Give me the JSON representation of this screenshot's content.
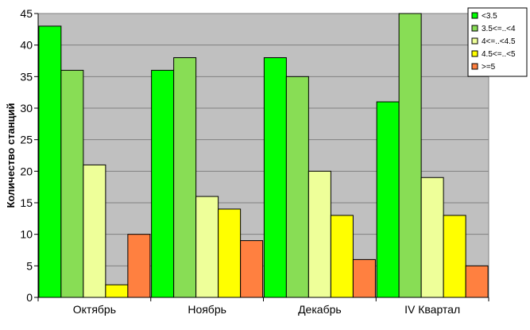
{
  "chart_data": {
    "type": "bar",
    "title": "",
    "xlabel": "",
    "ylabel": "Количество станций",
    "ylim": [
      0,
      45
    ],
    "yticks": [
      0,
      5,
      10,
      15,
      20,
      25,
      30,
      35,
      40,
      45
    ],
    "grid": true,
    "legend_position": "top-right",
    "categories": [
      "Октябрь",
      "Ноябрь",
      "Декабрь",
      "IV Квартал"
    ],
    "series": [
      {
        "name": "<3.5",
        "color": "#00ff00",
        "values": [
          43,
          36,
          38,
          31
        ]
      },
      {
        "name": "3.5<=..<4",
        "color": "#88dd55",
        "values": [
          36,
          38,
          35,
          45
        ]
      },
      {
        "name": "4<=..<4.5",
        "color": "#eeff99",
        "values": [
          21,
          16,
          20,
          19
        ]
      },
      {
        "name": "4.5<=..<5",
        "color": "#ffff00",
        "values": [
          2,
          14,
          13,
          13
        ]
      },
      {
        "name": ">=5",
        "color": "#ff8040",
        "values": [
          10,
          9,
          6,
          5
        ]
      }
    ],
    "plot_background": "#c0c0c0"
  }
}
